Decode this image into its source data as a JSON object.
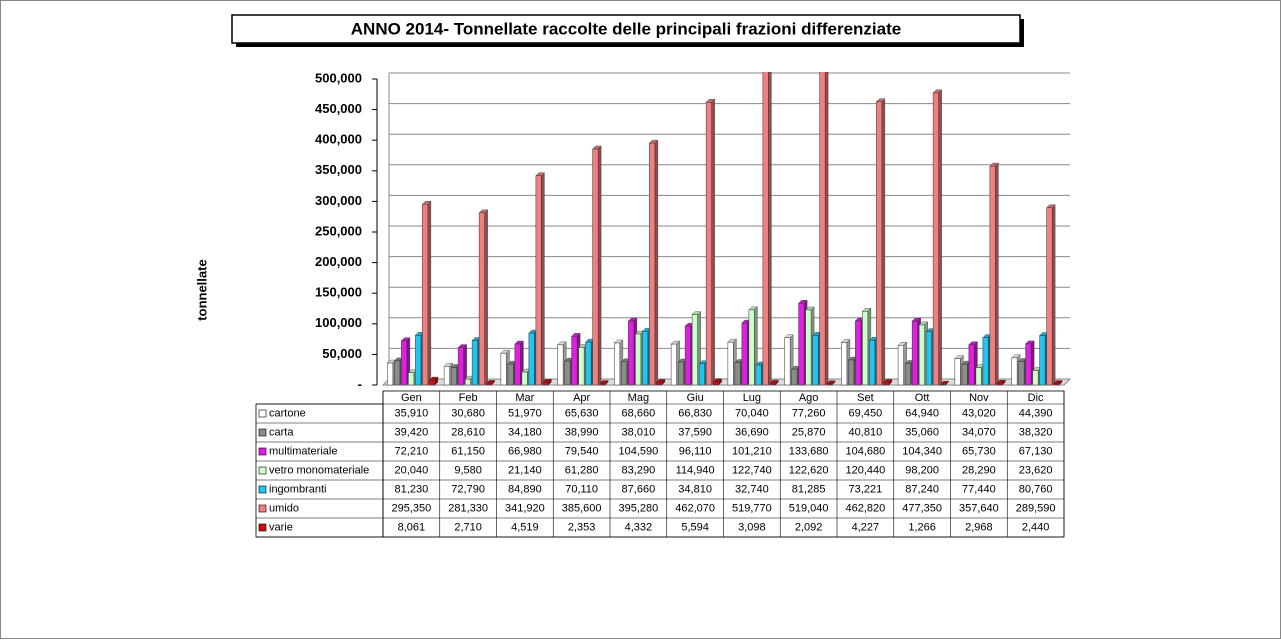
{
  "chart_data": {
    "type": "bar",
    "title": "ANNO 2014- Tonnellate raccolte delle principali frazioni differenziate",
    "y_label": "tonnellate",
    "categories": [
      "Gen",
      "Feb",
      "Mar",
      "Apr",
      "Mag",
      "Giu",
      "Lug",
      "Ago",
      "Set",
      "Ott",
      "Nov",
      "Dic"
    ],
    "ylim": [
      0,
      500000
    ],
    "yticks": [
      {
        "value": 0,
        "label": "-"
      },
      {
        "value": 50000,
        "label": "50,000"
      },
      {
        "value": 100000,
        "label": "100,000"
      },
      {
        "value": 150000,
        "label": "150,000"
      },
      {
        "value": 200000,
        "label": "200,000"
      },
      {
        "value": 250000,
        "label": "250,000"
      },
      {
        "value": 300000,
        "label": "300,000"
      },
      {
        "value": 350000,
        "label": "350,000"
      },
      {
        "value": 400000,
        "label": "400,000"
      },
      {
        "value": 450000,
        "label": "450,000"
      },
      {
        "value": 500000,
        "label": "500,000"
      }
    ],
    "grid": true,
    "series": [
      {
        "name": "cartone",
        "color": "#ffffff",
        "values": [
          35910,
          30680,
          51970,
          65630,
          68660,
          66830,
          70040,
          77260,
          69450,
          64940,
          43020,
          44390
        ],
        "value_labels": [
          "35,910",
          "30,680",
          "51,970",
          "65,630",
          "68,660",
          "66,830",
          "70,040",
          "77,260",
          "69,450",
          "64,940",
          "43,020",
          "44,390"
        ]
      },
      {
        "name": "carta",
        "color": "#8c8c8c",
        "values": [
          39420,
          28610,
          34180,
          38990,
          38010,
          37590,
          36690,
          25870,
          40810,
          35060,
          34070,
          38320
        ],
        "value_labels": [
          "39,420",
          "28,610",
          "34,180",
          "38,990",
          "38,010",
          "37,590",
          "36,690",
          "25,870",
          "40,810",
          "35,060",
          "34,070",
          "38,320"
        ]
      },
      {
        "name": "multimateriale",
        "color": "#e020e0",
        "values": [
          72210,
          61150,
          66980,
          79540,
          104590,
          96110,
          101210,
          133680,
          104680,
          104340,
          65730,
          67130
        ],
        "value_labels": [
          "72,210",
          "61,150",
          "66,980",
          "79,540",
          "104,590",
          "96,110",
          "101,210",
          "133,680",
          "104,680",
          "104,340",
          "65,730",
          "67,130"
        ]
      },
      {
        "name": "vetro monomateriale",
        "color": "#ccffcc",
        "values": [
          20040,
          9580,
          21140,
          61280,
          83290,
          114940,
          122740,
          122620,
          120440,
          98200,
          28290,
          23620
        ],
        "value_labels": [
          "20,040",
          "9,580",
          "21,140",
          "61,280",
          "83,290",
          "114,940",
          "122,740",
          "122,620",
          "120,440",
          "98,200",
          "28,290",
          "23,620"
        ]
      },
      {
        "name": "ingombranti",
        "color": "#22c4f0",
        "values": [
          81230,
          72790,
          84890,
          70110,
          87660,
          34810,
          32740,
          81285,
          73221,
          87240,
          77440,
          80760
        ],
        "value_labels": [
          "81,230",
          "72,790",
          "84,890",
          "70,110",
          "87,660",
          "34,810",
          "32,740",
          "81,285",
          "73,221",
          "87,240",
          "77,440",
          "80,760"
        ]
      },
      {
        "name": "umido",
        "color": "#f08080",
        "values": [
          295350,
          281330,
          341920,
          385600,
          395280,
          462070,
          519770,
          519040,
          462820,
          477350,
          357640,
          289590
        ],
        "value_labels": [
          "295,350",
          "281,330",
          "341,920",
          "385,600",
          "395,280",
          "462,070",
          "519,770",
          "519,040",
          "462,820",
          "477,350",
          "357,640",
          "289,590"
        ]
      },
      {
        "name": "varie",
        "color": "#cc1010",
        "values": [
          8061,
          2710,
          4519,
          2353,
          4332,
          5594,
          3098,
          2092,
          4227,
          1266,
          2968,
          2440
        ],
        "value_labels": [
          "8,061",
          "2,710",
          "4,519",
          "2,353",
          "4,332",
          "5,594",
          "3,098",
          "2,092",
          "4,227",
          "1,266",
          "2,968",
          "2,440"
        ]
      }
    ]
  }
}
